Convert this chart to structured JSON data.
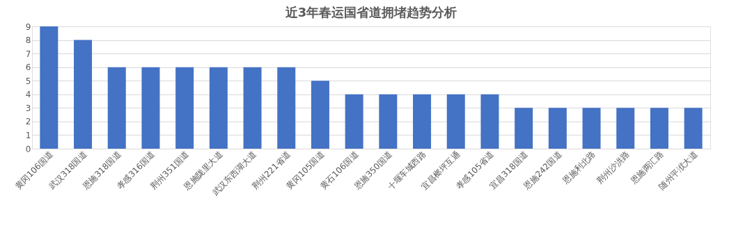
{
  "chart_data": {
    "type": "bar",
    "title": "近3年春运国省道拥堵趋势分析",
    "categories": [
      "黄冈106国道",
      "武汉318国道",
      "恩施318国道",
      "孝感316国道",
      "荆州351国道",
      "恩施陇里大道",
      "武汉东西湖大道",
      "荆州221省道",
      "黄冈105国道",
      "黄石106国道",
      "恩施350国道",
      "十堰车城西路",
      "宜昌榔坪互通",
      "孝感105省道",
      "宜昌318国道",
      "恩施242国道",
      "恩施利北路",
      "荆州沙洪路",
      "恩施两汇路",
      "随州平洑大道"
    ],
    "values": [
      9,
      8,
      6,
      6,
      6,
      6,
      6,
      6,
      5,
      4,
      4,
      4,
      4,
      4,
      3,
      3,
      3,
      3,
      3,
      3
    ],
    "color": "#4472c4",
    "ylim": [
      0,
      9
    ],
    "yticks": [
      0,
      1,
      2,
      3,
      4,
      5,
      6,
      7,
      8,
      9
    ],
    "grid": "y"
  }
}
